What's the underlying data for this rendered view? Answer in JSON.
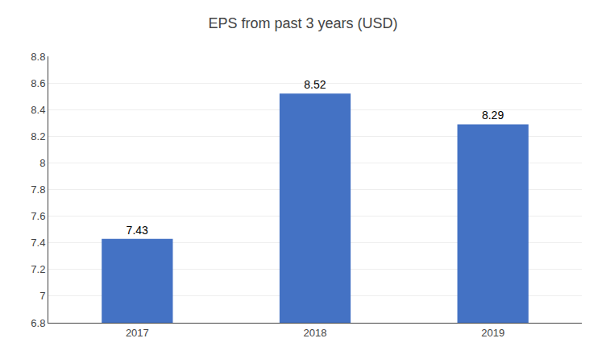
{
  "chart_data": {
    "type": "bar",
    "title": "EPS from past 3 years (USD)",
    "categories": [
      "2017",
      "2018",
      "2019"
    ],
    "values": [
      7.43,
      8.52,
      8.29
    ],
    "color": "#4472C4",
    "ylim": [
      6.8,
      8.8
    ],
    "yticks": [
      6.8,
      7,
      7.2,
      7.4,
      7.6,
      7.8,
      8,
      8.2,
      8.4,
      8.6,
      8.8
    ],
    "grid": true,
    "data_labels": true
  }
}
